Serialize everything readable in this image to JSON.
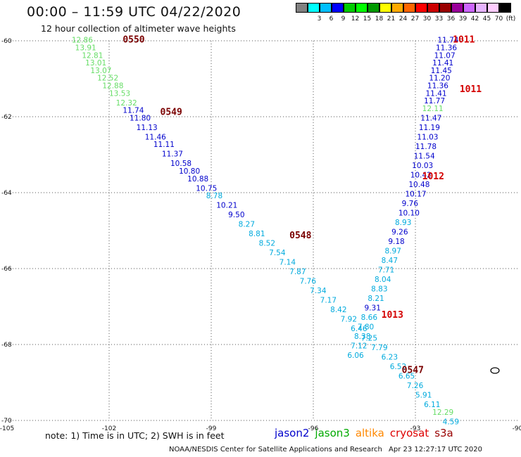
{
  "header": {
    "title": "00:00 – 11:59 UTC 04/22/2020",
    "subtitle": "12 hour collection of altimeter wave heights"
  },
  "colorscale": {
    "colors": [
      "#808080",
      "#00ffff",
      "#00bfff",
      "#0000ff",
      "#00cc00",
      "#00ff00",
      "#009900",
      "#ffff00",
      "#ffaa00",
      "#ff6600",
      "#ff0000",
      "#cc0000",
      "#990000",
      "#990099",
      "#cc66ff",
      "#e6b3ff",
      "#ffccff",
      "#000000"
    ],
    "labels": [
      "",
      "3",
      "6",
      "9",
      "12",
      "15",
      "18",
      "21",
      "24",
      "27",
      "30",
      "33",
      "36",
      "39",
      "42",
      "45",
      "70",
      "(ft)"
    ]
  },
  "axes": {
    "lon_ticks": [
      "-105",
      "-102",
      "-99",
      "-96",
      "-93",
      "-90"
    ],
    "lat_ticks": [
      "-60",
      "-62",
      "-64",
      "-66",
      "-68",
      "-70"
    ]
  },
  "passes": [
    {
      "id": "0550",
      "color": "#7a0000",
      "lat": -60.05,
      "lon": -101.6
    },
    {
      "id": "0549",
      "color": "#7a0000",
      "lat": -61.95,
      "lon": -100.5
    },
    {
      "id": "0548",
      "color": "#7a0000",
      "lat": -65.2,
      "lon": -96.7
    },
    {
      "id": "0547",
      "color": "#7a0000",
      "lat": -68.75,
      "lon": -93.4
    },
    {
      "id": "1011",
      "color": "#d40000",
      "lat": -60.05,
      "lon": -91.9
    },
    {
      "id": "1011",
      "color": "#d40000",
      "lat": -61.35,
      "lon": -91.7
    },
    {
      "id": "1012",
      "color": "#d40000",
      "lat": -63.65,
      "lon": -92.8
    },
    {
      "id": "1013",
      "color": "#d40000",
      "lat": -67.3,
      "lon": -94.0
    }
  ],
  "tracks": [
    {
      "name": "descending",
      "values": [
        {
          "v": "12.86",
          "c": "#66dd66",
          "lat": -60.05,
          "lon": -103.1
        },
        {
          "v": "13.91",
          "c": "#66dd66",
          "lat": -60.25,
          "lon": -103.0
        },
        {
          "v": "12.81",
          "c": "#66dd66",
          "lat": -60.45,
          "lon": -102.8
        },
        {
          "v": "13.01",
          "c": "#66dd66",
          "lat": -60.65,
          "lon": -102.7
        },
        {
          "v": "13.07",
          "c": "#66dd66",
          "lat": -60.85,
          "lon": -102.55
        },
        {
          "v": "12.52",
          "c": "#66dd66",
          "lat": -61.05,
          "lon": -102.35
        },
        {
          "v": "12.88",
          "c": "#66dd66",
          "lat": -61.25,
          "lon": -102.2
        },
        {
          "v": "13.53",
          "c": "#66dd66",
          "lat": -61.45,
          "lon": -102.0
        },
        {
          "v": "12.32",
          "c": "#66dd66",
          "lat": -61.7,
          "lon": -101.8
        },
        {
          "v": "11.74",
          "c": "#0000cc",
          "lat": -61.9,
          "lon": -101.6
        },
        {
          "v": "11.80",
          "c": "#0000cc",
          "lat": -62.1,
          "lon": -101.4
        },
        {
          "v": "11.13",
          "c": "#0000cc",
          "lat": -62.35,
          "lon": -101.2
        },
        {
          "v": "11.46",
          "c": "#0000cc",
          "lat": -62.6,
          "lon": -100.95
        },
        {
          "v": "11.11",
          "c": "#0000cc",
          "lat": -62.8,
          "lon": -100.7
        },
        {
          "v": "11.37",
          "c": "#0000cc",
          "lat": -63.05,
          "lon": -100.45
        },
        {
          "v": "10.58",
          "c": "#0000cc",
          "lat": -63.3,
          "lon": -100.2
        },
        {
          "v": "10.80",
          "c": "#0000cc",
          "lat": -63.5,
          "lon": -99.95
        },
        {
          "v": "10.88",
          "c": "#0000cc",
          "lat": -63.7,
          "lon": -99.7
        },
        {
          "v": "10.75",
          "c": "#0000cc",
          "lat": -63.95,
          "lon": -99.45
        },
        {
          "v": "8.78",
          "c": "#00aadd",
          "lat": -64.15,
          "lon": -99.15
        },
        {
          "v": "10.21",
          "c": "#0000cc",
          "lat": -64.4,
          "lon": -98.85
        },
        {
          "v": "9.50",
          "c": "#0000cc",
          "lat": -64.65,
          "lon": -98.5
        },
        {
          "v": "8.27",
          "c": "#00aadd",
          "lat": -64.9,
          "lon": -98.2
        },
        {
          "v": "8.81",
          "c": "#00aadd",
          "lat": -65.15,
          "lon": -97.9
        },
        {
          "v": "8.52",
          "c": "#00aadd",
          "lat": -65.4,
          "lon": -97.6
        },
        {
          "v": "7.54",
          "c": "#00aadd",
          "lat": -65.65,
          "lon": -97.3
        },
        {
          "v": "7.14",
          "c": "#00aadd",
          "lat": -65.9,
          "lon": -97.0
        },
        {
          "v": "7.87",
          "c": "#00aadd",
          "lat": -66.15,
          "lon": -96.7
        },
        {
          "v": "7.76",
          "c": "#00aadd",
          "lat": -66.4,
          "lon": -96.4
        },
        {
          "v": "7.34",
          "c": "#00aadd",
          "lat": -66.65,
          "lon": -96.1
        },
        {
          "v": "7.17",
          "c": "#00aadd",
          "lat": -66.9,
          "lon": -95.8
        },
        {
          "v": "8.42",
          "c": "#00aadd",
          "lat": -67.15,
          "lon": -95.5
        },
        {
          "v": "7.92",
          "c": "#00aadd",
          "lat": -67.4,
          "lon": -95.2
        },
        {
          "v": "6.46",
          "c": "#00aadd",
          "lat": -67.65,
          "lon": -94.9
        },
        {
          "v": "7.25",
          "c": "#00aadd",
          "lat": -67.9,
          "lon": -94.6
        },
        {
          "v": "7.79",
          "c": "#00aadd",
          "lat": -68.15,
          "lon": -94.3
        },
        {
          "v": "6.23",
          "c": "#00aadd",
          "lat": -68.4,
          "lon": -94.0
        },
        {
          "v": "6.52",
          "c": "#00aadd",
          "lat": -68.65,
          "lon": -93.75
        },
        {
          "v": "6.65",
          "c": "#00aadd",
          "lat": -68.9,
          "lon": -93.5
        },
        {
          "v": "7.26",
          "c": "#00aadd",
          "lat": -69.15,
          "lon": -93.25
        },
        {
          "v": "5.91",
          "c": "#00aadd",
          "lat": -69.4,
          "lon": -93.0
        },
        {
          "v": "6.11",
          "c": "#00aadd",
          "lat": -69.65,
          "lon": -92.75
        },
        {
          "v": "12.29",
          "c": "#66dd66",
          "lat": -69.85,
          "lon": -92.5
        },
        {
          "v": "4.59",
          "c": "#00aadd",
          "lat": -70.1,
          "lon": -92.2
        }
      ]
    },
    {
      "name": "ascending",
      "values": [
        {
          "v": "11.74",
          "c": "#0000cc",
          "lat": -60.05,
          "lon": -92.35
        },
        {
          "v": "11.36",
          "c": "#0000cc",
          "lat": -60.25,
          "lon": -92.4
        },
        {
          "v": "11.07",
          "c": "#0000cc",
          "lat": -60.45,
          "lon": -92.45
        },
        {
          "v": "11.41",
          "c": "#0000cc",
          "lat": -60.65,
          "lon": -92.5
        },
        {
          "v": "11.45",
          "c": "#0000cc",
          "lat": -60.85,
          "lon": -92.55
        },
        {
          "v": "11.20",
          "c": "#0000cc",
          "lat": -61.05,
          "lon": -92.6
        },
        {
          "v": "11.36",
          "c": "#0000cc",
          "lat": -61.25,
          "lon": -92.65
        },
        {
          "v": "11.41",
          "c": "#0000cc",
          "lat": -61.45,
          "lon": -92.7
        },
        {
          "v": "11.77",
          "c": "#0000cc",
          "lat": -61.65,
          "lon": -92.75
        },
        {
          "v": "12.11",
          "c": "#66dd66",
          "lat": -61.85,
          "lon": -92.8
        },
        {
          "v": "11.47",
          "c": "#0000cc",
          "lat": -62.1,
          "lon": -92.85
        },
        {
          "v": "11.19",
          "c": "#0000cc",
          "lat": -62.35,
          "lon": -92.9
        },
        {
          "v": "11.03",
          "c": "#0000cc",
          "lat": -62.6,
          "lon": -92.95
        },
        {
          "v": "11.78",
          "c": "#0000cc",
          "lat": -62.85,
          "lon": -93.0
        },
        {
          "v": "11.54",
          "c": "#0000cc",
          "lat": -63.1,
          "lon": -93.05
        },
        {
          "v": "10.03",
          "c": "#0000cc",
          "lat": -63.35,
          "lon": -93.1
        },
        {
          "v": "10.42",
          "c": "#0000cc",
          "lat": -63.6,
          "lon": -93.15
        },
        {
          "v": "10.48",
          "c": "#0000cc",
          "lat": -63.85,
          "lon": -93.2
        },
        {
          "v": "10.17",
          "c": "#0000cc",
          "lat": -64.1,
          "lon": -93.3
        },
        {
          "v": "9.76",
          "c": "#0000cc",
          "lat": -64.35,
          "lon": -93.4
        },
        {
          "v": "10.10",
          "c": "#0000cc",
          "lat": -64.6,
          "lon": -93.5
        },
        {
          "v": "8.93",
          "c": "#00aadd",
          "lat": -64.85,
          "lon": -93.6
        },
        {
          "v": "9.26",
          "c": "#0000cc",
          "lat": -65.1,
          "lon": -93.7
        },
        {
          "v": "9.18",
          "c": "#0000cc",
          "lat": -65.35,
          "lon": -93.8
        },
        {
          "v": "8.97",
          "c": "#00aadd",
          "lat": -65.6,
          "lon": -93.9
        },
        {
          "v": "8.47",
          "c": "#00aadd",
          "lat": -65.85,
          "lon": -94.0
        },
        {
          "v": "7.71",
          "c": "#00aadd",
          "lat": -66.1,
          "lon": -94.1
        },
        {
          "v": "8.04",
          "c": "#00aadd",
          "lat": -66.35,
          "lon": -94.2
        },
        {
          "v": "8.83",
          "c": "#00aadd",
          "lat": -66.6,
          "lon": -94.3
        },
        {
          "v": "8.21",
          "c": "#00aadd",
          "lat": -66.85,
          "lon": -94.4
        },
        {
          "v": "9.31",
          "c": "#0000cc",
          "lat": -67.1,
          "lon": -94.5
        },
        {
          "v": "8.66",
          "c": "#00aadd",
          "lat": -67.35,
          "lon": -94.6
        },
        {
          "v": "7.80",
          "c": "#00aadd",
          "lat": -67.6,
          "lon": -94.7
        },
        {
          "v": "8.38",
          "c": "#00aadd",
          "lat": -67.85,
          "lon": -94.8
        },
        {
          "v": "7.12",
          "c": "#00aadd",
          "lat": -68.1,
          "lon": -94.9
        },
        {
          "v": "6.06",
          "c": "#00aadd",
          "lat": -68.35,
          "lon": -95.0
        }
      ]
    }
  ],
  "footer": {
    "note": "note: 1) Time is in UTC; 2) SWH is in feet",
    "missions": [
      {
        "label": "jason2",
        "color": "#0000cc"
      },
      {
        "label": "jason3",
        "color": "#00aa00"
      },
      {
        "label": "altika",
        "color": "#ff8800"
      },
      {
        "label": "cryosat",
        "color": "#dd0000"
      },
      {
        "label": "s3a",
        "color": "#990000"
      }
    ],
    "credit": "NOAA/NESDIS Center for Satellite Applications and Research",
    "timestamp": "Apr 23 12:27:17 UTC 2020"
  }
}
